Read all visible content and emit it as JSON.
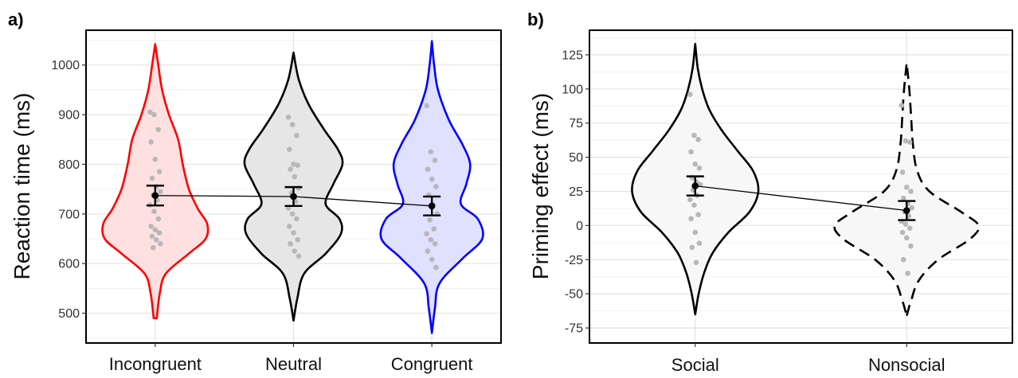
{
  "chart_data": [
    {
      "type": "violin",
      "panel_label": "a)",
      "xlabel": "",
      "ylabel": "Reaction time (ms)",
      "ylim": [
        440,
        1070
      ],
      "yticks": [
        500,
        600,
        700,
        800,
        900,
        1000
      ],
      "grid": true,
      "categories": [
        "Incongruent",
        "Neutral",
        "Congruent"
      ],
      "colors": {
        "Incongruent": "#ff0000",
        "Neutral": "#000000",
        "Congruent": "#0000ff"
      },
      "fills": {
        "Incongruent": "#ffe0e0",
        "Neutral": "#e6e6e6",
        "Congruent": "#e0e0ff"
      },
      "violins": [
        {
          "category": "Incongruent",
          "min": 490,
          "max": 1042,
          "profile": [
            [
              490,
              0.02
            ],
            [
              540,
              0.06
            ],
            [
              580,
              0.14
            ],
            [
              620,
              0.44
            ],
            [
              650,
              0.66
            ],
            [
              680,
              0.68
            ],
            [
              710,
              0.56
            ],
            [
              750,
              0.44
            ],
            [
              800,
              0.36
            ],
            [
              850,
              0.3
            ],
            [
              900,
              0.18
            ],
            [
              950,
              0.09
            ],
            [
              1000,
              0.04
            ],
            [
              1042,
              0.0
            ]
          ]
        },
        {
          "category": "Neutral",
          "min": 485,
          "max": 1025,
          "profile": [
            [
              485,
              0.0
            ],
            [
              530,
              0.05
            ],
            [
              580,
              0.14
            ],
            [
              620,
              0.42
            ],
            [
              660,
              0.62
            ],
            [
              690,
              0.6
            ],
            [
              720,
              0.42
            ],
            [
              760,
              0.52
            ],
            [
              800,
              0.64
            ],
            [
              830,
              0.58
            ],
            [
              870,
              0.4
            ],
            [
              920,
              0.2
            ],
            [
              970,
              0.07
            ],
            [
              1025,
              0.0
            ]
          ]
        },
        {
          "category": "Congruent",
          "min": 460,
          "max": 1048,
          "profile": [
            [
              460,
              0.0
            ],
            [
              510,
              0.04
            ],
            [
              560,
              0.1
            ],
            [
              610,
              0.4
            ],
            [
              650,
              0.66
            ],
            [
              690,
              0.6
            ],
            [
              720,
              0.38
            ],
            [
              760,
              0.45
            ],
            [
              800,
              0.5
            ],
            [
              840,
              0.4
            ],
            [
              890,
              0.22
            ],
            [
              950,
              0.08
            ],
            [
              1000,
              0.03
            ],
            [
              1048,
              0.0
            ]
          ]
        }
      ],
      "points": {
        "Incongruent": [
          905,
          900,
          870,
          845,
          810,
          785,
          772,
          755,
          745,
          738,
          728,
          718,
          705,
          690,
          675,
          668,
          662,
          655,
          648,
          640,
          632
        ],
        "Neutral": [
          895,
          880,
          858,
          830,
          800,
          798,
          790,
          775,
          752,
          742,
          725,
          712,
          700,
          690,
          675,
          662,
          648,
          640,
          625,
          615
        ],
        "Congruent": [
          918,
          825,
          808,
          790,
          770,
          755,
          738,
          718,
          700,
          688,
          670,
          660,
          648,
          640,
          625,
          608,
          592
        ]
      },
      "means": [
        737,
        735,
        716
      ],
      "errors": [
        20,
        19,
        19
      ]
    },
    {
      "type": "violin",
      "panel_label": "b)",
      "xlabel": "",
      "ylabel": "Priming effect (ms)",
      "ylim": [
        -86,
        143
      ],
      "yticks": [
        -75,
        -50,
        -25,
        0,
        25,
        50,
        75,
        100,
        125
      ],
      "grid": true,
      "categories": [
        "Social",
        "Nonsocial"
      ],
      "line_styles": {
        "Social": "solid",
        "Nonsocial": "dashed"
      },
      "fill": "#f7f7f7",
      "violins": [
        {
          "category": "Social",
          "min": -65,
          "max": 133,
          "profile": [
            [
              -65,
              0.0
            ],
            [
              -50,
              0.04
            ],
            [
              -35,
              0.1
            ],
            [
              -20,
              0.2
            ],
            [
              -5,
              0.38
            ],
            [
              10,
              0.62
            ],
            [
              25,
              0.72
            ],
            [
              40,
              0.66
            ],
            [
              55,
              0.48
            ],
            [
              70,
              0.3
            ],
            [
              85,
              0.16
            ],
            [
              100,
              0.08
            ],
            [
              115,
              0.03
            ],
            [
              133,
              0.0
            ]
          ]
        },
        {
          "category": "Nonsocial",
          "min": -66,
          "max": 119,
          "profile": [
            [
              -66,
              0.0
            ],
            [
              -55,
              0.05
            ],
            [
              -40,
              0.14
            ],
            [
              -25,
              0.36
            ],
            [
              -10,
              0.72
            ],
            [
              0,
              0.82
            ],
            [
              10,
              0.62
            ],
            [
              25,
              0.26
            ],
            [
              40,
              0.12
            ],
            [
              60,
              0.07
            ],
            [
              80,
              0.05
            ],
            [
              100,
              0.03
            ],
            [
              119,
              0.0
            ]
          ]
        }
      ],
      "points": {
        "Social": [
          96,
          66,
          63,
          54,
          45,
          42,
          35,
          32,
          30,
          26,
          22,
          19,
          15,
          8,
          5,
          -5,
          -13,
          -16,
          -27
        ],
        "Nonsocial": [
          88,
          62,
          61,
          39,
          28,
          25,
          20,
          16,
          13,
          10,
          7,
          3,
          1,
          -2,
          -5,
          -9,
          -15,
          -25,
          -35
        ]
      },
      "means": [
        29,
        11
      ],
      "errors": [
        7,
        7
      ]
    }
  ]
}
